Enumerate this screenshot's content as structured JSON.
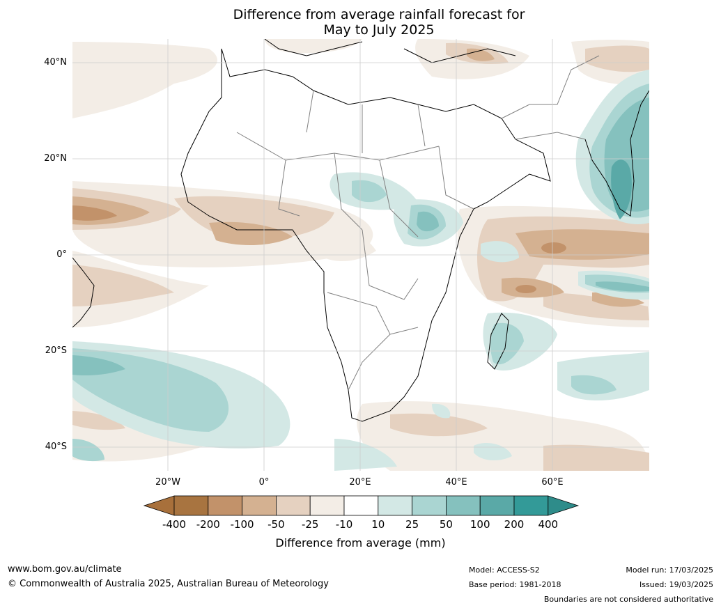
{
  "title": {
    "line1": "Difference from average rainfall forecast for",
    "line2": "May to July 2025"
  },
  "map": {
    "lat_labels": [
      "40°N",
      "20°N",
      "0°",
      "20°S",
      "40°S"
    ],
    "lon_labels": [
      "20°W",
      "0°",
      "20°E",
      "40°E",
      "60°E"
    ],
    "colorbar": {
      "ticks": [
        "-400",
        "-200",
        "-100",
        "-50",
        "-25",
        "-10",
        "10",
        "25",
        "50",
        "100",
        "200",
        "400"
      ],
      "colors": [
        "#a87440",
        "#c2926a",
        "#d4b191",
        "#e5d1c0",
        "#f3ede6",
        "#ffffff",
        "#d3e8e5",
        "#aad5d2",
        "#85c1be",
        "#5aa9a7",
        "#339a98"
      ],
      "extend_low": "#a8703b",
      "extend_high": "#2e8c8a",
      "label": "Difference from average (mm)"
    }
  },
  "footer": {
    "website": "www.bom.gov.au/climate",
    "copyright": "© Commonwealth of Australia 2025, Australian Bureau of Meteorology",
    "model": "Model: ACCESS-S2",
    "base_period": "Base period: 1981-2018",
    "model_run": "Model run: 17/03/2025",
    "issued": "Issued: 19/03/2025",
    "disclaimer": "Boundaries are not considered authoritative"
  }
}
